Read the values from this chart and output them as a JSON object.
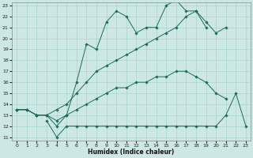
{
  "xlabel": "Humidex (Indice chaleur)",
  "xlim": [
    -0.5,
    23.5
  ],
  "ylim": [
    11,
    23
  ],
  "yticks": [
    11,
    12,
    13,
    14,
    15,
    16,
    17,
    18,
    19,
    20,
    21,
    22,
    23
  ],
  "xticks": [
    0,
    1,
    2,
    3,
    4,
    5,
    6,
    7,
    8,
    9,
    10,
    11,
    12,
    13,
    14,
    15,
    16,
    17,
    18,
    19,
    20,
    21,
    22,
    23
  ],
  "bg_color": "#cde8e4",
  "line_color": "#1a6b5e",
  "grid_color": "#a8d5ce",
  "lines": [
    {
      "x": [
        0,
        1,
        2,
        3,
        4,
        5,
        6,
        7,
        8,
        9,
        10,
        11,
        12,
        13,
        14,
        15,
        16,
        17,
        18,
        19
      ],
      "y": [
        13.5,
        13.5,
        13.0,
        13.0,
        12.0,
        13.0,
        16.0,
        19.5,
        19.0,
        21.5,
        22.5,
        22.0,
        20.5,
        21.0,
        21.0,
        23.0,
        23.5,
        22.5,
        22.5,
        21.0
      ]
    },
    {
      "x": [
        0,
        1,
        2,
        3,
        4,
        5,
        6,
        7,
        8,
        9,
        10,
        11,
        12,
        13,
        14,
        15,
        16,
        17,
        18,
        19,
        20,
        21
      ],
      "y": [
        13.5,
        13.5,
        13.0,
        13.0,
        13.5,
        14.0,
        15.0,
        16.0,
        17.0,
        17.5,
        18.0,
        18.5,
        19.0,
        19.5,
        20.0,
        20.5,
        21.0,
        22.0,
        22.5,
        21.5,
        20.5,
        21.0
      ]
    },
    {
      "x": [
        0,
        1,
        2,
        3,
        4,
        5,
        6,
        7,
        8,
        9,
        10,
        11,
        12,
        13,
        14,
        15,
        16,
        17,
        18,
        19,
        20,
        21
      ],
      "y": [
        13.5,
        13.5,
        13.0,
        13.0,
        12.5,
        13.0,
        13.5,
        14.0,
        14.5,
        15.0,
        15.5,
        15.5,
        16.0,
        16.0,
        16.5,
        16.5,
        17.0,
        17.0,
        16.5,
        16.0,
        15.0,
        14.5
      ]
    },
    {
      "x": [
        3,
        4,
        5,
        6,
        7,
        8,
        9,
        10,
        11,
        12,
        13,
        14,
        15,
        16,
        17,
        18,
        19,
        20,
        21,
        22,
        23
      ],
      "y": [
        12.5,
        11.0,
        12.0,
        12.0,
        12.0,
        12.0,
        12.0,
        12.0,
        12.0,
        12.0,
        12.0,
        12.0,
        12.0,
        12.0,
        12.0,
        12.0,
        12.0,
        12.0,
        13.0,
        15.0,
        12.0
      ]
    }
  ]
}
